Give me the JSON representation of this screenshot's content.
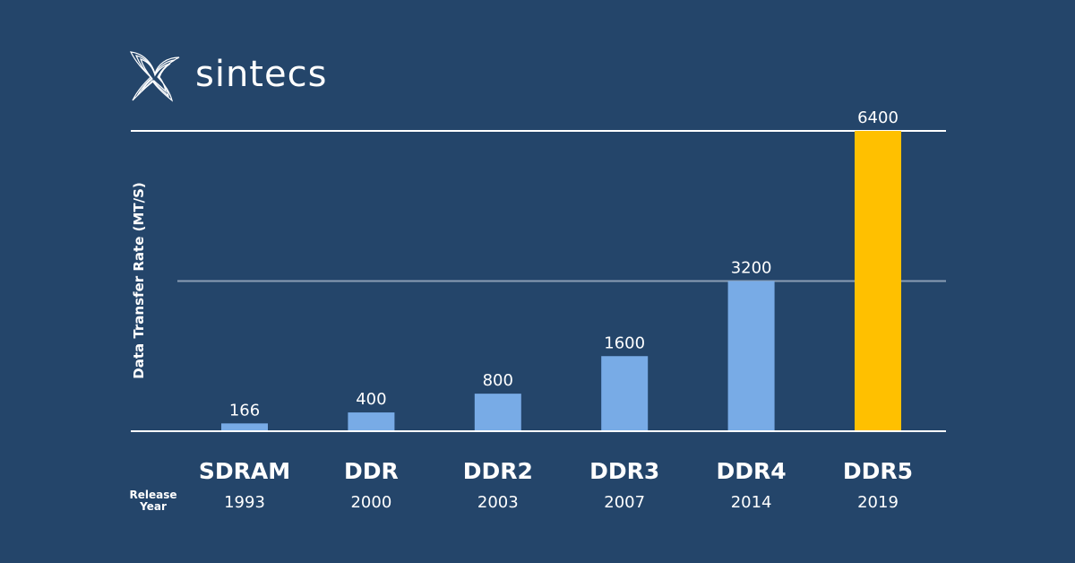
{
  "brand": {
    "name": "sintecs"
  },
  "chart_data": {
    "type": "bar",
    "ylabel": "Data Transfer Rate (MT/S)",
    "row_label": [
      "Release",
      "Year"
    ],
    "categories": [
      "SDRAM",
      "DDR",
      "DDR2",
      "DDR3",
      "DDR4",
      "DDR5"
    ],
    "years": [
      "1993",
      "2000",
      "2003",
      "2007",
      "2014",
      "2019"
    ],
    "values": [
      166,
      400,
      800,
      1600,
      3200,
      6400
    ],
    "data_labels": [
      "166",
      "400",
      "800",
      "1600",
      "3200",
      "6400"
    ],
    "ylim": [
      0,
      6400
    ],
    "gridlines": [
      3200,
      6400
    ],
    "grid": true,
    "legend": "none",
    "colors": {
      "default_bar": "#78abe6",
      "highlight_bar": "#ffc000",
      "background": "#24456a",
      "axis_line": "#ffffff",
      "mid_gridline": "#8a9db4"
    },
    "highlight_index": 5
  }
}
